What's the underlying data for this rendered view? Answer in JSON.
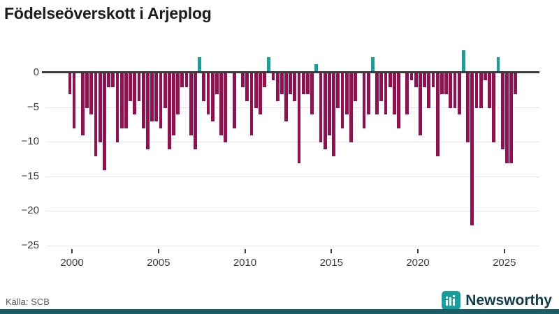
{
  "header": {
    "title": "Födelseöverskott i Arjeplog"
  },
  "footer": {
    "source": "Källa: SCB",
    "brand": "Newsworthy",
    "logo_icon": "bar-chart-icon"
  },
  "chart_data": {
    "type": "bar",
    "title": "Födelseöverskott i Arjeplog",
    "frequency": "quarterly",
    "start": "2000 Q1",
    "end": "2025 Q4",
    "values": [
      -3,
      -8,
      0,
      -9,
      -5,
      -6,
      -12,
      -10,
      -14,
      -2,
      -2,
      -10,
      -8,
      -8,
      -4,
      -6,
      -4,
      -8,
      -11,
      -7,
      -7,
      -8,
      -5,
      -11,
      -9,
      -6,
      -2,
      -2,
      -9,
      -11,
      2,
      -4,
      -6,
      -7,
      -3,
      -9,
      -10,
      0,
      -8,
      0,
      -2,
      -4,
      -9,
      -5,
      -6,
      -2,
      2,
      -1,
      -4,
      -3,
      -7,
      -3,
      -4,
      -13,
      -3,
      -3,
      -6,
      1,
      -10,
      -11,
      -9,
      -12,
      -5,
      -8,
      -6,
      -10,
      -4,
      0,
      -8,
      -6,
      2,
      -6,
      -4,
      -6,
      -2,
      -6,
      -8,
      0,
      -6,
      -1,
      -2,
      -9,
      -2,
      -5,
      -2,
      -12,
      -3,
      -3,
      -5,
      -5,
      -6,
      3,
      -10,
      -22,
      -5,
      -5,
      -1,
      -5,
      -10,
      2,
      -11,
      -13,
      -13,
      -3
    ],
    "x_tick_labels": [
      "2000",
      "2005",
      "2010",
      "2015",
      "2020",
      "2025"
    ],
    "y_tick_labels": [
      "0",
      "−5",
      "−10",
      "−15",
      "−20",
      "−25"
    ],
    "y_tick_values": [
      0,
      -5,
      -10,
      -15,
      -20,
      -25
    ],
    "ylim": [
      -25,
      3
    ],
    "grid": "horizontal",
    "legend": "none",
    "colors": {
      "negative": "#950f50",
      "positive": "#169f9c"
    },
    "source": "Källa: SCB"
  }
}
